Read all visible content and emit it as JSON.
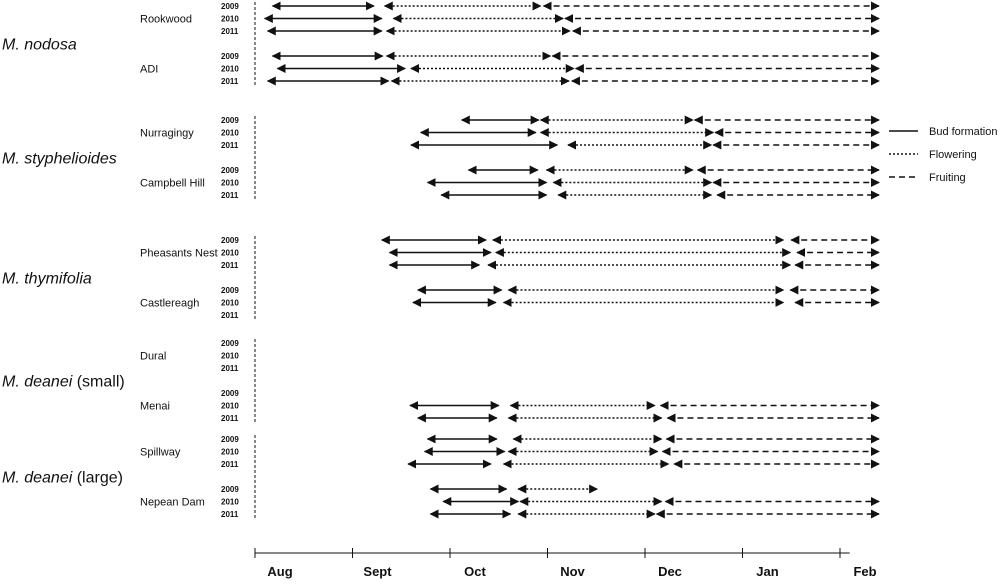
{
  "chart_data": {
    "type": "timeline",
    "x_axis": {
      "months": [
        "Aug",
        "Sept",
        "Oct",
        "Nov",
        "Dec",
        "Jan",
        "Feb"
      ]
    },
    "years": [
      "2009",
      "2010",
      "2011"
    ],
    "legend": [
      {
        "label": "Bud formation",
        "style": "solid"
      },
      {
        "label": "Flowering",
        "style": "dotted"
      },
      {
        "label": "Fruiting",
        "style": "dashed"
      }
    ],
    "species": [
      {
        "name": "M. nodosa",
        "suffix": "",
        "sites": [
          {
            "name": "Rookwood",
            "rows": [
              {
                "year": "2009",
                "bud": [
                  0.18,
                  1.22
                ],
                "flower": [
                  1.33,
                  2.93
                ],
                "fruit": [
                  2.96,
                  6.4
                ]
              },
              {
                "year": "2010",
                "bud": [
                  0.1,
                  1.3
                ],
                "flower": [
                  1.42,
                  3.16
                ],
                "fruit": [
                  3.18,
                  6.4
                ]
              },
              {
                "year": "2011",
                "bud": [
                  0.13,
                  1.3
                ],
                "flower": [
                  1.35,
                  3.23
                ],
                "fruit": [
                  3.26,
                  6.4
                ]
              }
            ]
          },
          {
            "name": "ADI",
            "rows": [
              {
                "year": "2009",
                "bud": [
                  0.18,
                  1.31
                ],
                "flower": [
                  1.35,
                  3.03
                ],
                "fruit": [
                  3.05,
                  6.4
                ]
              },
              {
                "year": "2010",
                "bud": [
                  0.23,
                  1.54
                ],
                "flower": [
                  1.6,
                  3.27
                ],
                "fruit": [
                  3.29,
                  6.4
                ]
              },
              {
                "year": "2011",
                "bud": [
                  0.13,
                  1.37
                ],
                "flower": [
                  1.4,
                  3.22
                ],
                "fruit": [
                  3.25,
                  6.4
                ]
              }
            ]
          }
        ]
      },
      {
        "name": "M. styphelioides",
        "suffix": "",
        "sites": [
          {
            "name": "Nurragingy",
            "rows": [
              {
                "year": "2009",
                "bud": [
                  2.12,
                  2.91
                ],
                "flower": [
                  2.93,
                  4.49
                ],
                "fruit": [
                  4.51,
                  6.4
                ]
              },
              {
                "year": "2010",
                "bud": [
                  1.7,
                  2.88
                ],
                "flower": [
                  2.93,
                  4.7
                ],
                "fruit": [
                  4.72,
                  6.4
                ]
              },
              {
                "year": "2011",
                "bud": [
                  1.6,
                  3.1
                ],
                "flower": [
                  3.21,
                  4.68
                ],
                "fruit": [
                  4.7,
                  6.4
                ]
              }
            ]
          },
          {
            "name": "Campbell Hill",
            "rows": [
              {
                "year": "2009",
                "bud": [
                  2.19,
                  2.9
                ],
                "flower": [
                  2.99,
                  4.49
                ],
                "fruit": [
                  4.54,
                  6.4
                ]
              },
              {
                "year": "2010",
                "bud": [
                  1.77,
                  2.99
                ],
                "flower": [
                  3.06,
                  4.68
                ],
                "fruit": [
                  4.7,
                  6.4
                ]
              },
              {
                "year": "2011",
                "bud": [
                  1.91,
                  2.99
                ],
                "flower": [
                  3.11,
                  4.68
                ],
                "fruit": [
                  4.74,
                  6.4
                ]
              }
            ]
          }
        ]
      },
      {
        "name": "M. thymifolia",
        "suffix": "",
        "sites": [
          {
            "name": "Pheasants Nest",
            "rows": [
              {
                "year": "2009",
                "bud": [
                  1.3,
                  2.37
                ],
                "flower": [
                  2.44,
                  5.42
                ],
                "fruit": [
                  5.5,
                  6.4
                ]
              },
              {
                "year": "2010",
                "bud": [
                  1.38,
                  2.42
                ],
                "flower": [
                  2.47,
                  5.49
                ],
                "fruit": [
                  5.56,
                  6.4
                ]
              },
              {
                "year": "2011",
                "bud": [
                  1.38,
                  2.3
                ],
                "flower": [
                  2.39,
                  5.49
                ],
                "fruit": [
                  5.54,
                  6.4
                ]
              }
            ]
          },
          {
            "name": "Castlereagh",
            "rows": [
              {
                "year": "2009",
                "bud": [
                  1.67,
                  2.53
                ],
                "flower": [
                  2.6,
                  5.42
                ],
                "fruit": [
                  5.49,
                  6.4
                ]
              },
              {
                "year": "2010",
                "bud": [
                  1.62,
                  2.47
                ],
                "flower": [
                  2.55,
                  5.42
                ],
                "fruit": [
                  5.54,
                  6.4
                ]
              }
            ]
          }
        ]
      },
      {
        "name": "M. deanei",
        "suffix": " (small)",
        "sites": [
          {
            "name": "Dural",
            "rows": []
          },
          {
            "name": "Menai",
            "rows": [
              {
                "year": "2010",
                "bud": [
                  1.59,
                  2.5
                ],
                "flower": [
                  2.62,
                  4.1
                ],
                "fruit": [
                  4.16,
                  6.4
                ]
              },
              {
                "year": "2011",
                "bud": [
                  1.67,
                  2.48
                ],
                "flower": [
                  2.6,
                  4.17
                ],
                "fruit": [
                  4.23,
                  6.4
                ]
              }
            ]
          }
        ]
      },
      {
        "name": "M. deanei",
        "suffix": " (large)",
        "sites": [
          {
            "name": "Spillway",
            "rows": [
              {
                "year": "2009",
                "bud": [
                  1.77,
                  2.48
                ],
                "flower": [
                  2.65,
                  4.17
                ],
                "fruit": [
                  4.22,
                  6.4
                ]
              },
              {
                "year": "2010",
                "bud": [
                  1.74,
                  2.56
                ],
                "flower": [
                  2.6,
                  4.13
                ],
                "fruit": [
                  4.18,
                  6.4
                ]
              },
              {
                "year": "2011",
                "bud": [
                  1.57,
                  2.42
                ],
                "flower": [
                  2.55,
                  4.24
                ],
                "fruit": [
                  4.3,
                  6.4
                ]
              }
            ]
          },
          {
            "name": "Nepean Dam",
            "rows": [
              {
                "year": "2009",
                "bud": [
                  1.8,
                  2.58
                ],
                "flower": [
                  2.7,
                  3.51
                ]
              },
              {
                "year": "2010",
                "bud": [
                  1.93,
                  2.7
                ],
                "flower": [
                  2.72,
                  4.17
                ],
                "fruit": [
                  4.21,
                  6.4
                ]
              },
              {
                "year": "2011",
                "bud": [
                  1.8,
                  2.62
                ],
                "flower": [
                  2.7,
                  4.1
                ],
                "fruit": [
                  4.12,
                  6.4
                ]
              }
            ]
          }
        ]
      }
    ]
  }
}
